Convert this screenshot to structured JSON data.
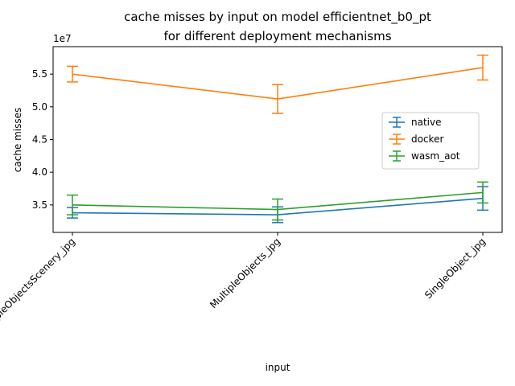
{
  "chart_data": {
    "type": "line",
    "title_line1": "cache misses by input on model efficientnet_b0_pt",
    "title_line2": "for different deployment mechanisms",
    "xlabel": "input",
    "ylabel": "cache misses",
    "y_offset_label": "1e7",
    "categories": [
      "MultipleObjectsScenery_jpg",
      "MultipleObjects_jpg",
      "SingleObject_jpg"
    ],
    "y_ticks": [
      3.5,
      4.0,
      4.5,
      5.0,
      5.5
    ],
    "y_tick_labels": [
      "3.5",
      "4.0",
      "4.5",
      "5.0",
      "5.5"
    ],
    "ylim": [
      3.08,
      5.92
    ],
    "y_scale": "1e7",
    "grid": false,
    "legend_position": "center-right",
    "series": [
      {
        "name": "native",
        "color": "#1f77b4",
        "values": [
          3.38,
          3.35,
          3.6
        ],
        "err": [
          0.08,
          0.12,
          0.18
        ]
      },
      {
        "name": "docker",
        "color": "#ff7f0e",
        "values": [
          5.5,
          5.12,
          5.6
        ],
        "err": [
          0.12,
          0.22,
          0.19
        ]
      },
      {
        "name": "wasm_aot",
        "color": "#2ca02c",
        "values": [
          3.5,
          3.43,
          3.69
        ],
        "err": [
          0.15,
          0.16,
          0.16
        ]
      }
    ]
  }
}
